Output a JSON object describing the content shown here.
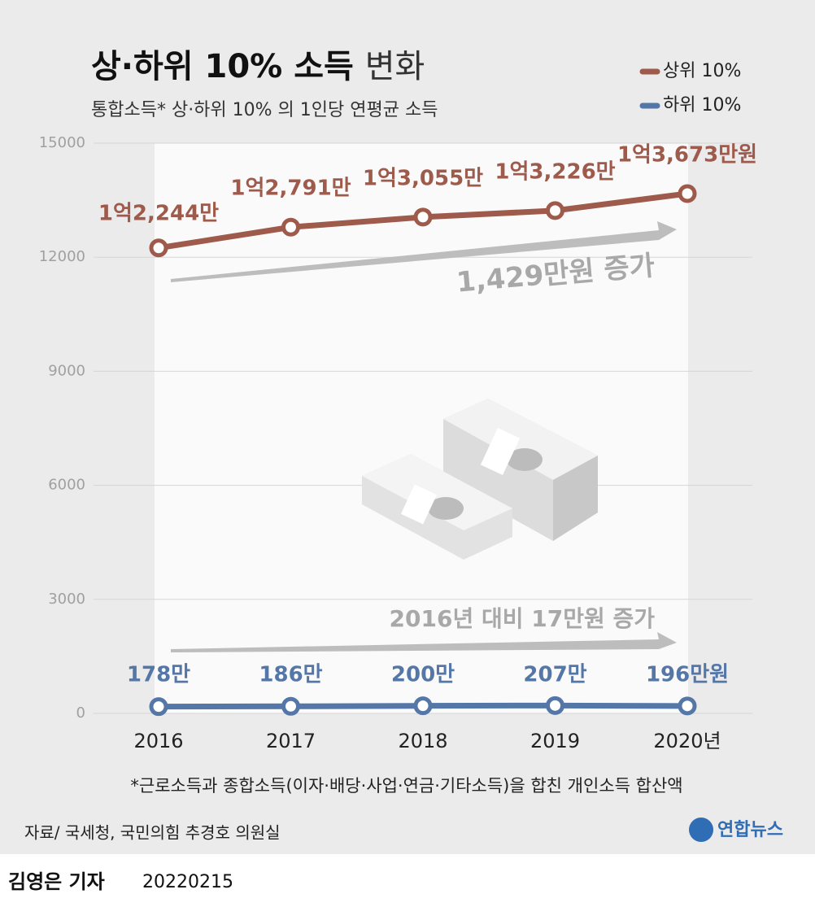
{
  "chart_data": {
    "type": "line",
    "title": "상·하위 10% 소득",
    "title_suffix": "변화",
    "subtitle": "통합소득* 상·하위 10% 의 1인당 연평균 소득",
    "categories": [
      "2016",
      "2017",
      "2018",
      "2019",
      "2020년"
    ],
    "series": [
      {
        "name": "상위 10%",
        "color": "#9e5a4b",
        "values": [
          12244,
          12791,
          13055,
          13226,
          13673
        ],
        "value_labels": [
          "1억2,244만",
          "1억2,791만",
          "1억3,055만",
          "1억3,226만",
          "1억3,673만원"
        ]
      },
      {
        "name": "하위 10%",
        "color": "#5577a8",
        "values": [
          178,
          186,
          200,
          207,
          196
        ],
        "value_labels": [
          "178만",
          "186만",
          "200만",
          "207만",
          "196만원"
        ]
      }
    ],
    "ylim": [
      0,
      15000
    ],
    "yticks": [
      0,
      3000,
      6000,
      9000,
      12000,
      15000
    ],
    "grid": true,
    "annotations": [
      "1,429만원 증가",
      "2016년 대비 17만원 증가"
    ],
    "footnote": "*근로소득과 종합소득(이자·배당·사업·연금·기타소득)을 합친 개인소득 합산액",
    "source": "자료/ 국세청, 국민의힘 추경호 의원실",
    "logo": "연합뉴스",
    "byline": "김영은 기자",
    "date": "20220215"
  }
}
